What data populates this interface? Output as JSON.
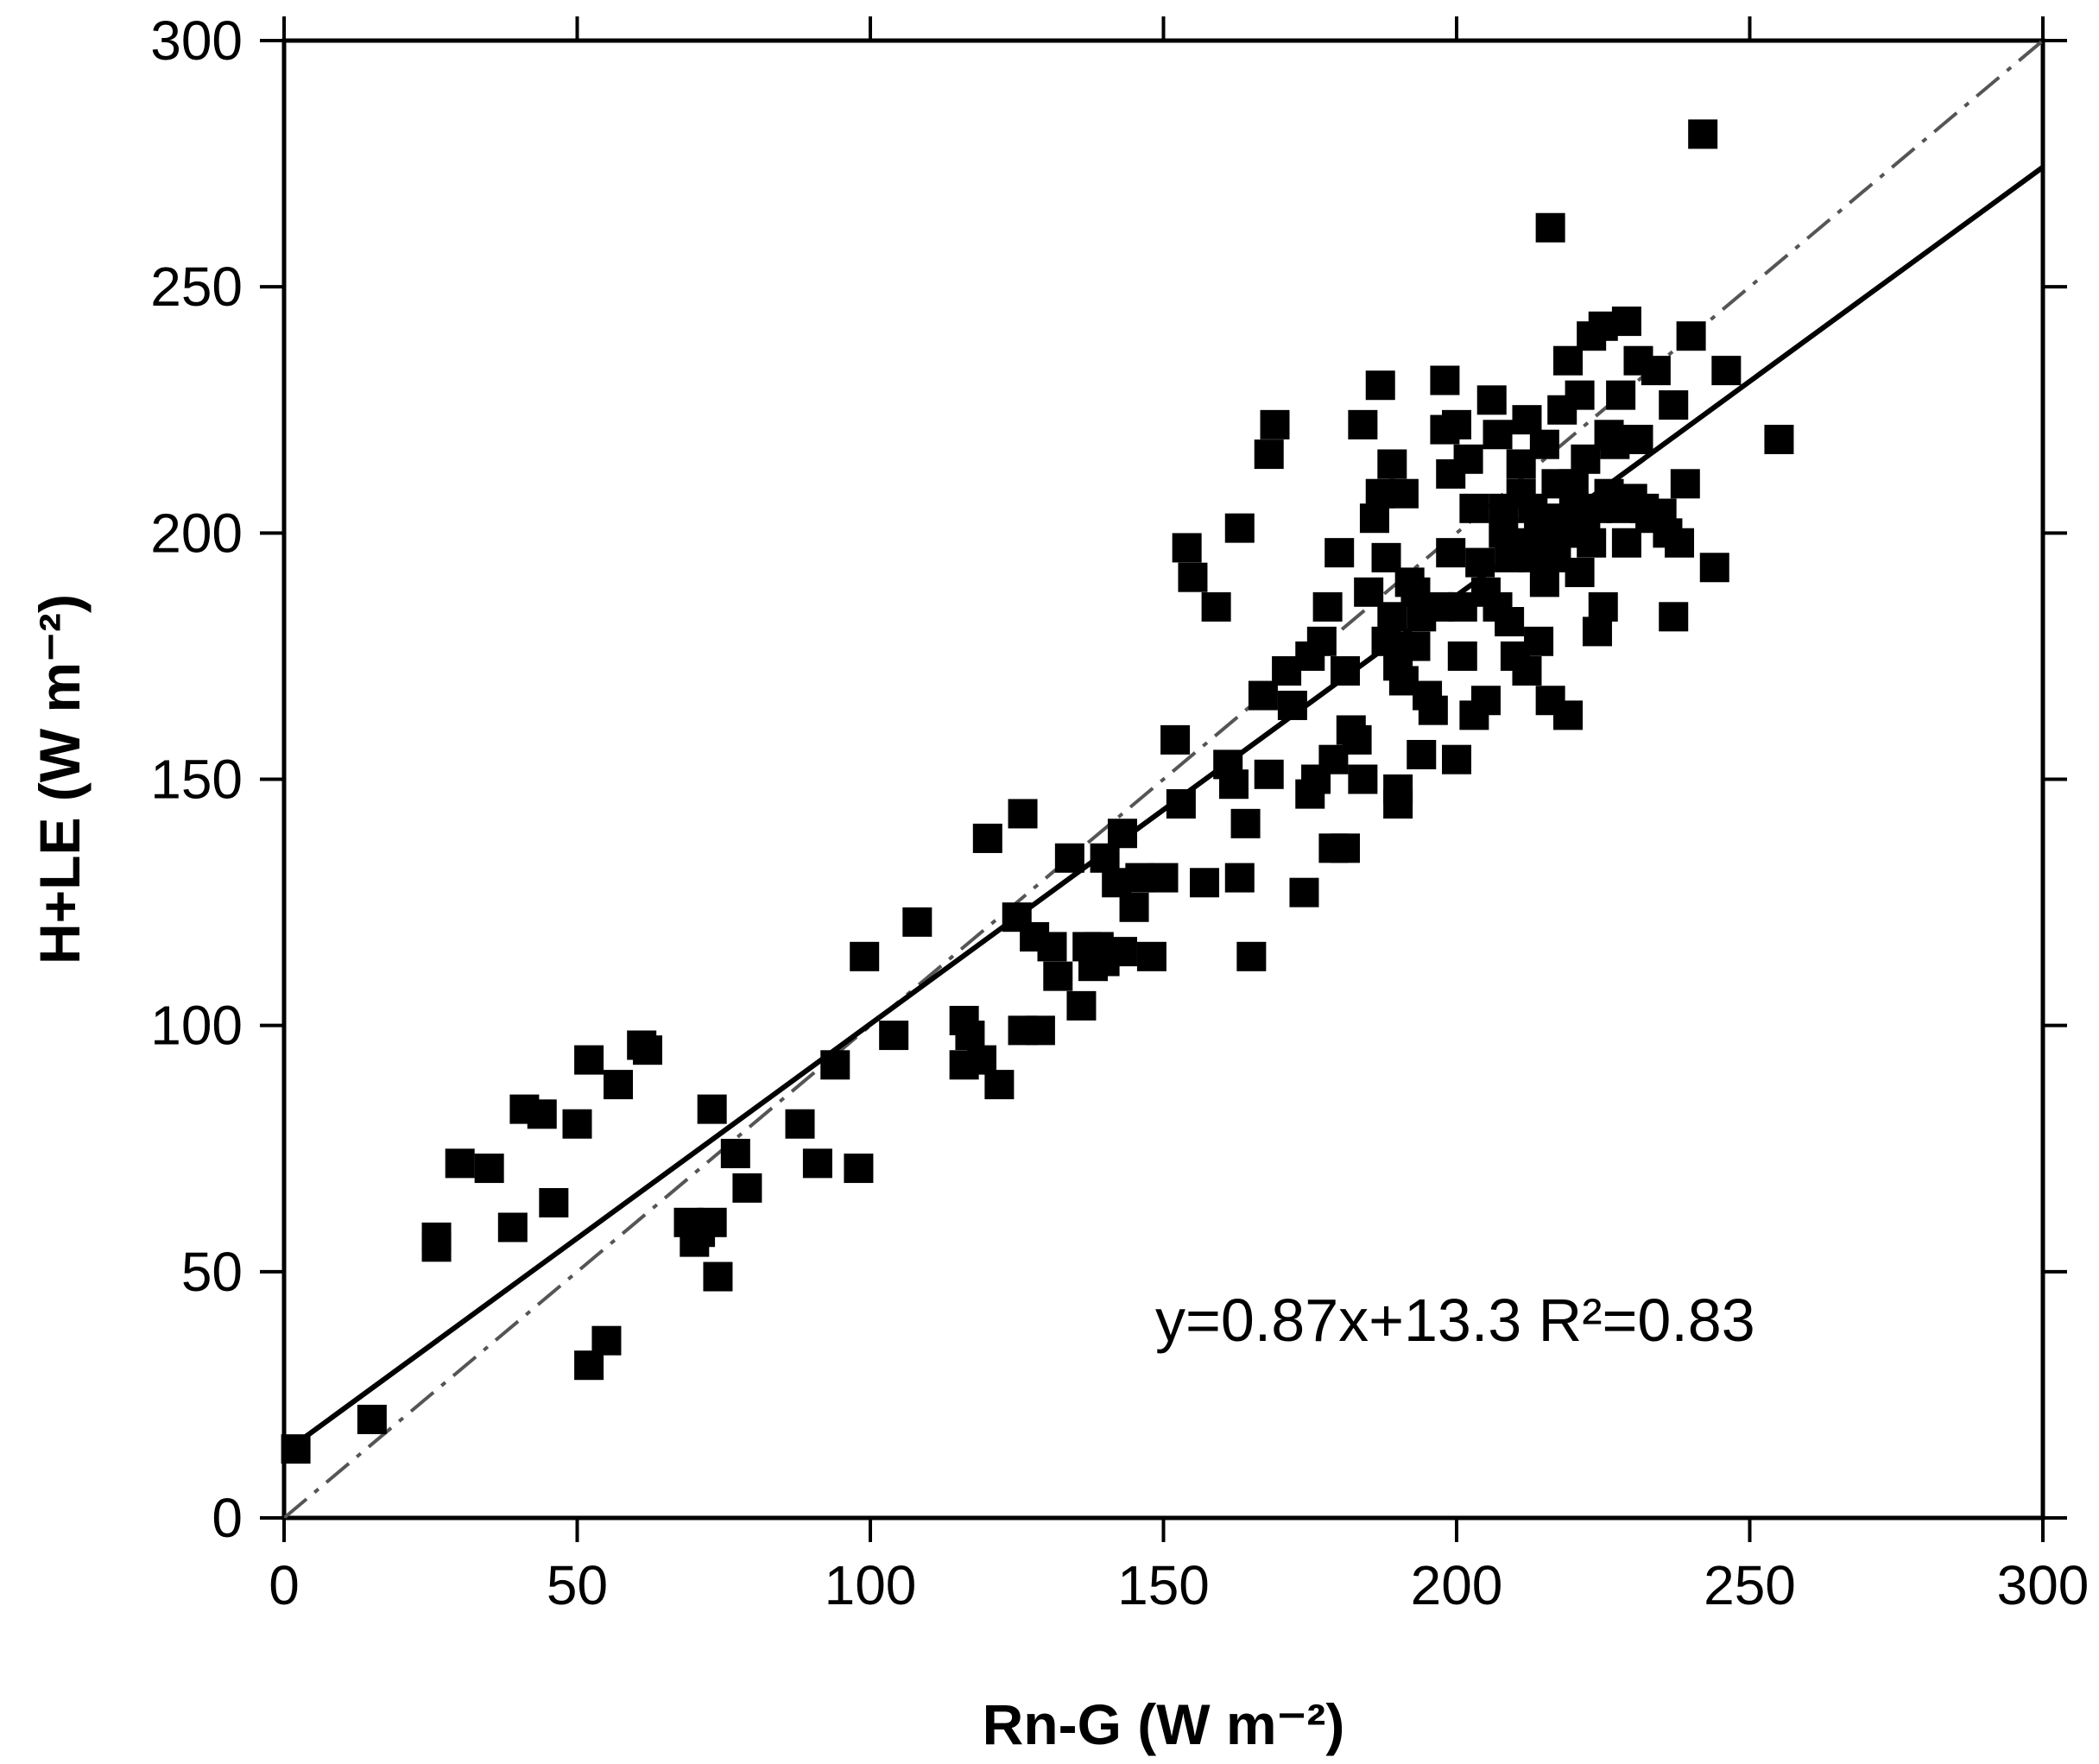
{
  "chart_data": {
    "type": "scatter",
    "xlabel": "Rn-G (W m⁻²)",
    "ylabel": "H+LE (W m⁻²)",
    "xlim": [
      0,
      300
    ],
    "ylim": [
      0,
      300
    ],
    "xticks": [
      0,
      50,
      100,
      150,
      200,
      250,
      300
    ],
    "yticks": [
      0,
      50,
      100,
      150,
      200,
      250,
      300
    ],
    "grid": false,
    "annotation": "y=0.87x+13.3  R²=0.83",
    "fit_line": {
      "slope": 0.87,
      "intercept": 13.3
    },
    "one_to_one_line": true,
    "series": [
      {
        "marker": "square",
        "color": "#000000",
        "points": [
          [
            2,
            14
          ],
          [
            15,
            20
          ],
          [
            26,
            57
          ],
          [
            26,
            55
          ],
          [
            30,
            72
          ],
          [
            35,
            71
          ],
          [
            39,
            59
          ],
          [
            41,
            83
          ],
          [
            44,
            82
          ],
          [
            46,
            64
          ],
          [
            50,
            80
          ],
          [
            52,
            93
          ],
          [
            52,
            31
          ],
          [
            55,
            36
          ],
          [
            57,
            88
          ],
          [
            61,
            96
          ],
          [
            62,
            95
          ],
          [
            69,
            60
          ],
          [
            70,
            56
          ],
          [
            71,
            58
          ],
          [
            73,
            60
          ],
          [
            73,
            83
          ],
          [
            74,
            49
          ],
          [
            77,
            74
          ],
          [
            79,
            67
          ],
          [
            88,
            80
          ],
          [
            91,
            72
          ],
          [
            94,
            92
          ],
          [
            98,
            71
          ],
          [
            99,
            114
          ],
          [
            104,
            98
          ],
          [
            108,
            121
          ],
          [
            116,
            101
          ],
          [
            116,
            92
          ],
          [
            117,
            98
          ],
          [
            119,
            93
          ],
          [
            120,
            138
          ],
          [
            122,
            88
          ],
          [
            125,
            122
          ],
          [
            126,
            99
          ],
          [
            126,
            143
          ],
          [
            128,
            118
          ],
          [
            129,
            99
          ],
          [
            131,
            116
          ],
          [
            132,
            110
          ],
          [
            134,
            134
          ],
          [
            136,
            104
          ],
          [
            137,
            116
          ],
          [
            138,
            112
          ],
          [
            139,
            116
          ],
          [
            140,
            113
          ],
          [
            140,
            134
          ],
          [
            142,
            129
          ],
          [
            143,
            139
          ],
          [
            143,
            115
          ],
          [
            145,
            124
          ],
          [
            146,
            130
          ],
          [
            148,
            114
          ],
          [
            150,
            130
          ],
          [
            152,
            158
          ],
          [
            153,
            145
          ],
          [
            154,
            197
          ],
          [
            155,
            191
          ],
          [
            157,
            129
          ],
          [
            159,
            185
          ],
          [
            161,
            153
          ],
          [
            162,
            149
          ],
          [
            163,
            201
          ],
          [
            163,
            130
          ],
          [
            164,
            141
          ],
          [
            165,
            114
          ],
          [
            167,
            167
          ],
          [
            168,
            151
          ],
          [
            168,
            216
          ],
          [
            169,
            222
          ],
          [
            171,
            172
          ],
          [
            172,
            165
          ],
          [
            174,
            127
          ],
          [
            175,
            175
          ],
          [
            175,
            147
          ],
          [
            176,
            150
          ],
          [
            177,
            178
          ],
          [
            178,
            185
          ],
          [
            179,
            154
          ],
          [
            179,
            136
          ],
          [
            180,
            196
          ],
          [
            181,
            136
          ],
          [
            181,
            172
          ],
          [
            182,
            160
          ],
          [
            183,
            158
          ],
          [
            184,
            222
          ],
          [
            184,
            150
          ],
          [
            185,
            188
          ],
          [
            186,
            203
          ],
          [
            187,
            230
          ],
          [
            187,
            208
          ],
          [
            188,
            195
          ],
          [
            188,
            178
          ],
          [
            189,
            214
          ],
          [
            189,
            183
          ],
          [
            190,
            173
          ],
          [
            190,
            145
          ],
          [
            190,
            148
          ],
          [
            191,
            170
          ],
          [
            191,
            208
          ],
          [
            192,
            190
          ],
          [
            193,
            177
          ],
          [
            193,
            188
          ],
          [
            194,
            155
          ],
          [
            194,
            183
          ],
          [
            195,
            167
          ],
          [
            196,
            164
          ],
          [
            197,
            185
          ],
          [
            198,
            221
          ],
          [
            198,
            231
          ],
          [
            199,
            196
          ],
          [
            199,
            212
          ],
          [
            200,
            154
          ],
          [
            200,
            222
          ],
          [
            201,
            175
          ],
          [
            201,
            185
          ],
          [
            202,
            215
          ],
          [
            203,
            205
          ],
          [
            203,
            163
          ],
          [
            204,
            194
          ],
          [
            205,
            188
          ],
          [
            205,
            166
          ],
          [
            206,
            227
          ],
          [
            207,
            220
          ],
          [
            207,
            185
          ],
          [
            208,
            205
          ],
          [
            208,
            200
          ],
          [
            209,
            195
          ],
          [
            209,
            182
          ],
          [
            210,
            198
          ],
          [
            210,
            175
          ],
          [
            211,
            214
          ],
          [
            211,
            208
          ],
          [
            212,
            223
          ],
          [
            212,
            172
          ],
          [
            213,
            195
          ],
          [
            213,
            205
          ],
          [
            214,
            200
          ],
          [
            214,
            178
          ],
          [
            215,
            218
          ],
          [
            215,
            190
          ],
          [
            216,
            262
          ],
          [
            216,
            203
          ],
          [
            216,
            166
          ],
          [
            217,
            210
          ],
          [
            217,
            195
          ],
          [
            218,
            225
          ],
          [
            218,
            200
          ],
          [
            219,
            235
          ],
          [
            219,
            163
          ],
          [
            220,
            210
          ],
          [
            220,
            205
          ],
          [
            221,
            228
          ],
          [
            221,
            192
          ],
          [
            222,
            200
          ],
          [
            222,
            215
          ],
          [
            223,
            198
          ],
          [
            223,
            240
          ],
          [
            224,
            205
          ],
          [
            224,
            180
          ],
          [
            225,
            242
          ],
          [
            225,
            185
          ],
          [
            226,
            220
          ],
          [
            226,
            208
          ],
          [
            227,
            218
          ],
          [
            228,
            228
          ],
          [
            228,
            205
          ],
          [
            229,
            243
          ],
          [
            229,
            198
          ],
          [
            230,
            207
          ],
          [
            231,
            219
          ],
          [
            231,
            235
          ],
          [
            232,
            205
          ],
          [
            233,
            203
          ],
          [
            234,
            233
          ],
          [
            235,
            204
          ],
          [
            236,
            200
          ],
          [
            237,
            183
          ],
          [
            237,
            226
          ],
          [
            238,
            198
          ],
          [
            239,
            210
          ],
          [
            240,
            240
          ],
          [
            242,
            281
          ],
          [
            244,
            193
          ],
          [
            246,
            233
          ],
          [
            255,
            219
          ]
        ]
      }
    ]
  }
}
